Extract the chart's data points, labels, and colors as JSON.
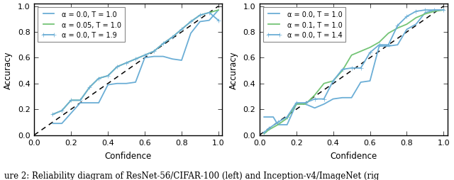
{
  "left": {
    "lines": [
      {
        "label": "α = 0.0, T = 1.0",
        "color": "#6baed6",
        "marker": null,
        "lw": 1.3,
        "x": [
          0.1,
          0.15,
          0.2,
          0.25,
          0.3,
          0.35,
          0.4,
          0.45,
          0.5,
          0.55,
          0.6,
          0.65,
          0.7,
          0.75,
          0.8,
          0.85,
          0.9,
          0.95,
          1.0
        ],
        "y": [
          0.09,
          0.09,
          0.17,
          0.25,
          0.25,
          0.25,
          0.39,
          0.4,
          0.4,
          0.41,
          0.6,
          0.61,
          0.61,
          0.59,
          0.58,
          0.79,
          0.88,
          0.89,
          0.97
        ]
      },
      {
        "label": "α = 0.05, T = 1.0",
        "color": "#74c476",
        "marker": null,
        "lw": 1.3,
        "x": [
          0.1,
          0.15,
          0.2,
          0.25,
          0.3,
          0.35,
          0.4,
          0.45,
          0.5,
          0.55,
          0.6,
          0.65,
          0.7,
          0.75,
          0.8,
          0.85,
          0.9,
          0.95,
          1.0
        ],
        "y": [
          0.16,
          0.19,
          0.27,
          0.27,
          0.37,
          0.44,
          0.46,
          0.53,
          0.56,
          0.59,
          0.62,
          0.65,
          0.71,
          0.76,
          0.82,
          0.88,
          0.93,
          0.95,
          0.97
        ]
      },
      {
        "label": "α = 0.0, T = 1.9",
        "color": "#6baed6",
        "marker": "+",
        "markersize": 5,
        "lw": 1.3,
        "x": [
          0.1,
          0.15,
          0.2,
          0.25,
          0.3,
          0.35,
          0.4,
          0.45,
          0.5,
          0.55,
          0.6,
          0.65,
          0.7,
          0.75,
          0.8,
          0.85,
          0.9,
          0.95,
          1.0
        ],
        "y": [
          0.16,
          0.19,
          0.27,
          0.27,
          0.37,
          0.44,
          0.46,
          0.53,
          0.56,
          0.59,
          0.62,
          0.65,
          0.71,
          0.76,
          0.82,
          0.88,
          0.93,
          0.95,
          0.89
        ]
      }
    ],
    "xlabel": "Confidence",
    "ylabel": "Accuracy",
    "xlim": [
      0.0,
      1.02
    ],
    "ylim": [
      0.0,
      1.02
    ],
    "xticks": [
      0.0,
      0.2,
      0.4,
      0.6,
      0.8,
      1.0
    ],
    "yticks": [
      0.0,
      0.2,
      0.4,
      0.6,
      0.8,
      1.0
    ]
  },
  "right": {
    "lines": [
      {
        "label": "α = 0.0, T = 1.0",
        "color": "#6baed6",
        "marker": null,
        "lw": 1.3,
        "x": [
          0.025,
          0.05,
          0.075,
          0.1,
          0.15,
          0.2,
          0.25,
          0.3,
          0.35,
          0.4,
          0.45,
          0.5,
          0.55,
          0.6,
          0.65,
          0.7,
          0.75,
          0.8,
          0.85,
          0.9,
          0.95,
          1.0
        ],
        "y": [
          0.14,
          0.14,
          0.14,
          0.08,
          0.08,
          0.24,
          0.24,
          0.21,
          0.24,
          0.28,
          0.29,
          0.29,
          0.41,
          0.42,
          0.69,
          0.69,
          0.7,
          0.82,
          0.86,
          0.95,
          0.97,
          0.97
        ]
      },
      {
        "label": "α = 0.1, T = 1.0",
        "color": "#74c476",
        "marker": null,
        "lw": 1.3,
        "x": [
          0.025,
          0.05,
          0.1,
          0.15,
          0.2,
          0.25,
          0.3,
          0.35,
          0.4,
          0.45,
          0.5,
          0.55,
          0.6,
          0.65,
          0.7,
          0.75,
          0.8,
          0.85,
          0.9,
          0.95,
          1.0
        ],
        "y": [
          0.01,
          0.04,
          0.08,
          0.13,
          0.24,
          0.24,
          0.31,
          0.4,
          0.42,
          0.5,
          0.62,
          0.65,
          0.68,
          0.72,
          0.79,
          0.83,
          0.86,
          0.91,
          0.94,
          0.96,
          0.97
        ]
      },
      {
        "label": "α = 0.0, T = 1.4",
        "color": "#6baed6",
        "marker": "+",
        "markersize": 5,
        "lw": 1.3,
        "x": [
          0.025,
          0.05,
          0.1,
          0.15,
          0.2,
          0.25,
          0.3,
          0.35,
          0.4,
          0.45,
          0.5,
          0.55,
          0.6,
          0.65,
          0.7,
          0.75,
          0.8,
          0.85,
          0.9,
          0.95,
          1.0
        ],
        "y": [
          0.02,
          0.05,
          0.1,
          0.14,
          0.25,
          0.25,
          0.28,
          0.28,
          0.42,
          0.51,
          0.52,
          0.52,
          0.64,
          0.7,
          0.7,
          0.85,
          0.92,
          0.96,
          0.97,
          0.97,
          0.97
        ]
      }
    ],
    "xlabel": "Confidence",
    "ylabel": "Accuracy",
    "xlim": [
      0.0,
      1.02
    ],
    "ylim": [
      0.0,
      1.02
    ],
    "xticks": [
      0.0,
      0.2,
      0.4,
      0.6,
      0.8,
      1.0
    ],
    "yticks": [
      0.0,
      0.2,
      0.4,
      0.6,
      0.8,
      1.0
    ]
  },
  "caption": "ure 2: Reliability diagram of ResNet-56/CIFAR-100 (left) and Inception-v4/ImageNet (rig",
  "bg_color": "#ffffff",
  "legend_fontsize": 7.0,
  "axis_fontsize": 8.5,
  "tick_fontsize": 8.0
}
